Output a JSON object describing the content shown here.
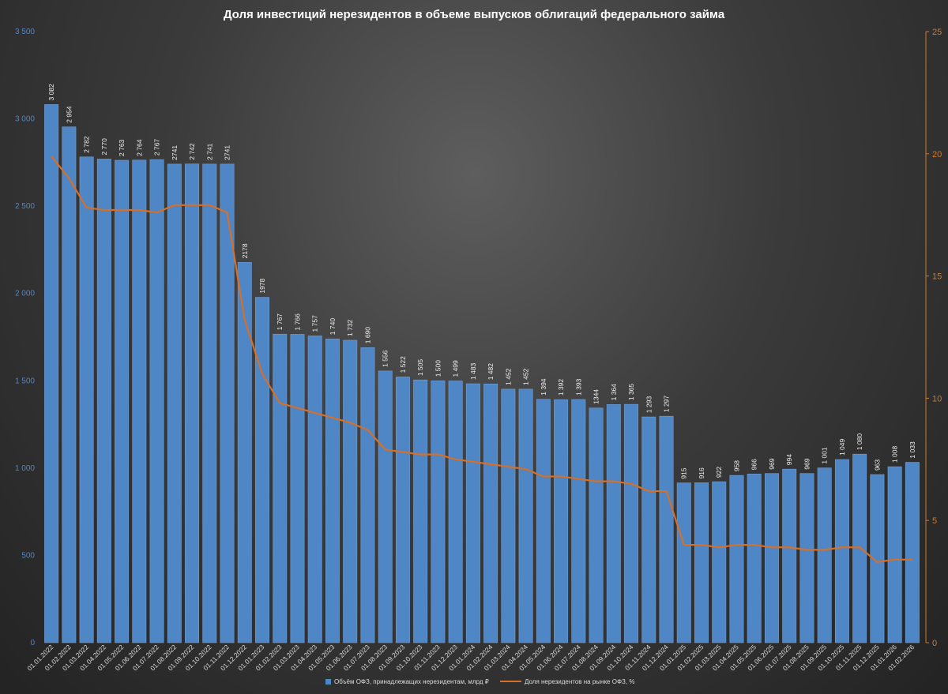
{
  "chart_data": {
    "type": "bar",
    "title": "Доля инвестиций нерезидентов в объеме выпусков облигаций федерального займа",
    "categories": [
      "01.01.2022",
      "01.02.2022",
      "01.03.2022",
      "01.04.2022",
      "01.05.2022",
      "01.06.2022",
      "01.07.2022",
      "01.08.2022",
      "01.09.2022",
      "01.10.2022",
      "01.11.2022",
      "01.12.2022",
      "01.01.2023",
      "01.02.2023",
      "01.03.2023",
      "01.04.2023",
      "01.05.2023",
      "01.06.2023",
      "01.07.2023",
      "01.08.2023",
      "01.09.2023",
      "01.10.2023",
      "01.11.2023",
      "01.12.2023",
      "01.01.2024",
      "01.02.2024",
      "01.03.2024",
      "01.04.2024",
      "01.05.2024",
      "01.06.2024",
      "01.07.2024",
      "01.08.2024",
      "01.09.2024",
      "01.10.2024",
      "01.11.2024",
      "01.12.2024",
      "01.01.2025",
      "01.02.2025",
      "01.03.2025",
      "01.04.2025",
      "01.05.2025",
      "01.06.2025",
      "01.07.2025",
      "01.08.2025",
      "01.09.2025",
      "01.10.2025",
      "01.11.2025",
      "01.12.2025",
      "01.01.2026",
      "01.02.2026"
    ],
    "series": [
      {
        "name": "Объём ОФЗ, принадлежащих нерезидентам, млрд ₽",
        "axis": "left",
        "values": [
          3082,
          2954,
          2782,
          2770,
          2763,
          2764,
          2767,
          2741,
          2742,
          2741,
          2741,
          2178,
          1978,
          1767,
          1766,
          1757,
          1740,
          1732,
          1690,
          1556,
          1522,
          1505,
          1500,
          1499,
          1483,
          1482,
          1452,
          1452,
          1394,
          1392,
          1393,
          1344,
          1364,
          1365,
          1293,
          1297,
          915,
          916,
          922,
          958,
          966,
          969,
          994,
          969,
          1001,
          1049,
          1080,
          963,
          1008,
          1033
        ],
        "labels": [
          "3 082",
          "2 954",
          "2 782",
          "2 770",
          "2 763",
          "2 764",
          "2 767",
          "2741",
          "2 742",
          "2 741",
          "2741",
          "2178",
          "1978",
          "1 767",
          "1 766",
          "1 757",
          "1 740",
          "1 732",
          "1 690",
          "1 556",
          "1 522",
          "1 505",
          "1 500",
          "1 499",
          "1 483",
          "1 482",
          "1 452",
          "1 452",
          "1 394",
          "1 392",
          "1 393",
          "1344",
          "1 364",
          "1 365",
          "1 293",
          "1 297",
          "915",
          "916",
          "922",
          "958",
          "966",
          "969",
          "994",
          "969",
          "1 001",
          "1 049",
          "1 080",
          "963",
          "1 008",
          "1 033"
        ]
      },
      {
        "name": "Доля нерезидентов на рынке ОФЗ, %",
        "axis": "right",
        "values": [
          19.9,
          19.0,
          17.8,
          17.7,
          17.7,
          17.7,
          17.6,
          17.9,
          17.9,
          17.9,
          17.6,
          13.2,
          11.0,
          9.8,
          9.6,
          9.4,
          9.2,
          9.0,
          8.7,
          7.9,
          7.8,
          7.7,
          7.7,
          7.5,
          7.4,
          7.3,
          7.2,
          7.1,
          6.8,
          6.8,
          6.7,
          6.6,
          6.6,
          6.5,
          6.2,
          6.2,
          4.0,
          4.0,
          3.9,
          4.0,
          4.0,
          3.9,
          3.9,
          3.8,
          3.8,
          3.9,
          3.9,
          3.3,
          3.4,
          3.4
        ]
      }
    ],
    "yleft": {
      "lim": [
        0,
        3500
      ],
      "ticks": [
        0,
        500,
        1000,
        1500,
        2000,
        2500,
        3000,
        3500
      ],
      "tick_labels": [
        "0",
        "500",
        "1 000",
        "1 500",
        "2 000",
        "2 500",
        "3 000",
        "3 500"
      ]
    },
    "yright": {
      "lim": [
        0,
        25
      ],
      "ticks": [
        0,
        5,
        10,
        15,
        20,
        25
      ],
      "tick_labels": [
        "0",
        "5",
        "10",
        "15",
        "20",
        "25"
      ]
    },
    "legend": "bottom",
    "grid": false,
    "colors": {
      "bar": "#4f86c6",
      "bar_edge": "#6f9fd8",
      "line": "#d4702a",
      "left_axis_text": "#4f86c6",
      "right_axis": "#d07a2c"
    }
  }
}
